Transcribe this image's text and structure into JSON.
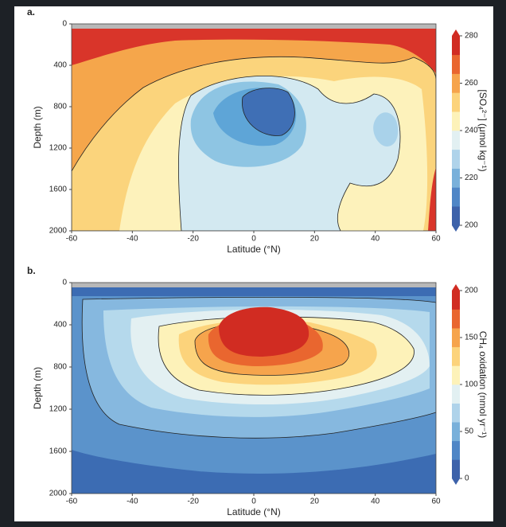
{
  "chart_data": [
    {
      "type": "contour",
      "panel_label": "a.",
      "xlabel": "Latitude (°N)",
      "ylabel": "Depth (m)",
      "xlim": [
        -60,
        60
      ],
      "xticks": [
        -60,
        -40,
        -20,
        0,
        20,
        40,
        60
      ],
      "ylim": [
        0,
        2000
      ],
      "yticks": [
        0,
        400,
        800,
        1200,
        1600,
        2000
      ],
      "y_inverted": true,
      "colorbar": {
        "label": "[SO₄²⁻] (μmol kg⁻¹)",
        "lim": [
          200,
          280
        ],
        "ticks": [
          200,
          220,
          240,
          260,
          280
        ],
        "colors": [
          "#3d62aa",
          "#4f86c6",
          "#79b0da",
          "#afd3ea",
          "#e2f0f2",
          "#fdf2b9",
          "#fcd37b",
          "#f6a44c",
          "#e9662f",
          "#d12c22"
        ]
      }
    },
    {
      "type": "contour",
      "panel_label": "b.",
      "xlabel": "Latitude (°N)",
      "ylabel": "Depth (m)",
      "xlim": [
        -60,
        60
      ],
      "xticks": [
        -60,
        -40,
        -20,
        0,
        20,
        40,
        60
      ],
      "ylim": [
        0,
        2000
      ],
      "yticks": [
        0,
        400,
        800,
        1200,
        1600,
        2000
      ],
      "y_inverted": true,
      "colorbar": {
        "label": "CH₄ oxidation (nmol yr⁻¹)",
        "lim": [
          0,
          200
        ],
        "ticks": [
          0,
          50,
          100,
          150,
          200
        ],
        "colors": [
          "#3d62aa",
          "#4f86c6",
          "#79b0da",
          "#afd3ea",
          "#e2f0f2",
          "#fdf2b9",
          "#fcd37b",
          "#f6a44c",
          "#e9662f",
          "#d12c22"
        ]
      }
    }
  ]
}
